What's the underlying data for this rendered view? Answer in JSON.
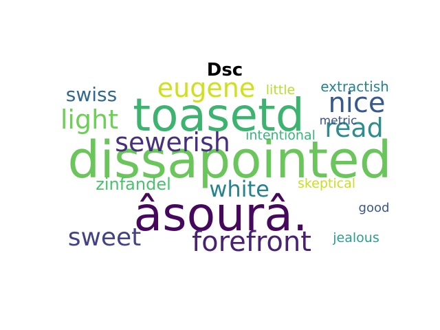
{
  "chart_data": {
    "type": "wordcloud",
    "title": "Dsc",
    "words": [
      {
        "text": "toasetd",
        "color": "#3db370"
      },
      {
        "text": "dissapointed",
        "color": "#6ac55a"
      },
      {
        "text": "âsourâ.",
        "color": "#46085c"
      },
      {
        "text": "forefront",
        "color": "#482173"
      },
      {
        "text": "sewerish",
        "color": "#46307e"
      },
      {
        "text": "nice",
        "color": "#38598c"
      },
      {
        "text": "eugene",
        "color": "#cfe11c"
      },
      {
        "text": "light",
        "color": "#6ece58"
      },
      {
        "text": "read",
        "color": "#2e8c8b"
      },
      {
        "text": "white",
        "color": "#25838e"
      },
      {
        "text": "sweet",
        "color": "#414287"
      },
      {
        "text": "swiss",
        "color": "#31688e"
      },
      {
        "text": "zinfandel",
        "color": "#4ac16d"
      },
      {
        "text": "extractish",
        "color": "#26828e"
      },
      {
        "text": "intentional",
        "color": "#35b779"
      },
      {
        "text": "skeptical",
        "color": "#c7e020"
      },
      {
        "text": "little",
        "color": "#b5de2b"
      },
      {
        "text": "metric",
        "color": "#3b528b"
      },
      {
        "text": "good",
        "color": "#39568c"
      },
      {
        "text": "jealous",
        "color": "#2a9d8f"
      }
    ]
  }
}
